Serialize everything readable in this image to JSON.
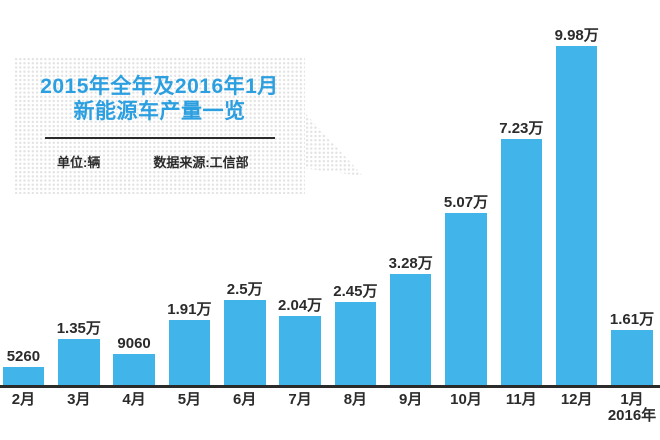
{
  "title": {
    "line1": "2015年全年及2016年1月",
    "line2": "新能源车产量一览"
  },
  "meta": {
    "unit_label": "单位:辆",
    "source_label": "数据来源:工信部"
  },
  "chart_data": {
    "type": "bar",
    "title": "2015年全年及2016年1月 新能源车产量一览",
    "unit": "辆",
    "source": "工信部",
    "categories": [
      "2月",
      "3月",
      "4月",
      "5月",
      "6月",
      "7月",
      "8月",
      "9月",
      "10月",
      "11月",
      "12月",
      "1月"
    ],
    "last_category_suffix": "2016年",
    "values": [
      5260,
      13500,
      9060,
      19100,
      25000,
      20400,
      24500,
      32800,
      50700,
      72300,
      99800,
      16100
    ],
    "value_labels": [
      "5260",
      "1.35万",
      "9060",
      "1.91万",
      "2.5万",
      "2.04万",
      "2.45万",
      "3.28万",
      "5.07万",
      "7.23万",
      "9.98万",
      "1.61万"
    ],
    "ylim": [
      0,
      99800
    ],
    "xlabel": "",
    "ylabel": "",
    "grid": false,
    "legend": false
  },
  "colors": {
    "bar": "#41b5ea",
    "title_text": "#2b9fe0",
    "dark_text": "#2b2b2b",
    "axis": "#2b2b2b",
    "dot_pattern": "#e3e3e3"
  }
}
